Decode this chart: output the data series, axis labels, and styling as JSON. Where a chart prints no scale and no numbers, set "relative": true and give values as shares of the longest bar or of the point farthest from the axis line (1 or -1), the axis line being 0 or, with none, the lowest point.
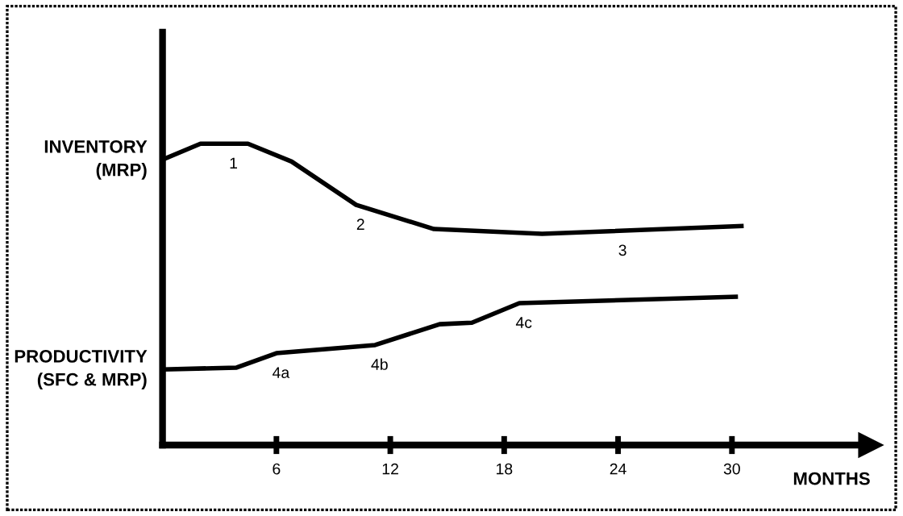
{
  "chart_data": {
    "type": "line",
    "relative": true,
    "xlabel": "MONTHS",
    "x": [
      0,
      2,
      4.5,
      6.8,
      10.2,
      14.3,
      20,
      30.5
    ],
    "xlim": [
      0,
      37.3
    ],
    "xticks": [
      6,
      12,
      18,
      24,
      30
    ],
    "series": [
      {
        "name": "INVENTORY\n(MRP)",
        "color": "#000000",
        "values": [
          0.947,
          1,
          1,
          0.941,
          0.797,
          0.717,
          0.701,
          0.727
        ]
      },
      {
        "name": "PRODUCTIVITY\n(SFC & MRP)",
        "color": "#000000",
        "x": [
          0,
          3.9,
          6,
          11.2,
          14.6,
          16.3,
          18.8,
          30.2
        ],
        "values": [
          0.251,
          0.257,
          0.305,
          0.332,
          0.401,
          0.406,
          0.471,
          0.492
        ]
      }
    ],
    "annotations": [
      {
        "text": "1",
        "x": 3.5,
        "y": 1
      },
      {
        "text": "2",
        "x": 10.2,
        "y": 0.797
      },
      {
        "text": "3",
        "x": 24,
        "y": 0.711
      },
      {
        "text": "4a",
        "x": 6,
        "y": 0.305
      },
      {
        "text": "4b",
        "x": 11.2,
        "y": 0.332
      },
      {
        "text": "4c",
        "x": 18.8,
        "y": 0.471
      }
    ],
    "grid": false,
    "legend": false,
    "marker": "none",
    "line_style": "solid"
  }
}
